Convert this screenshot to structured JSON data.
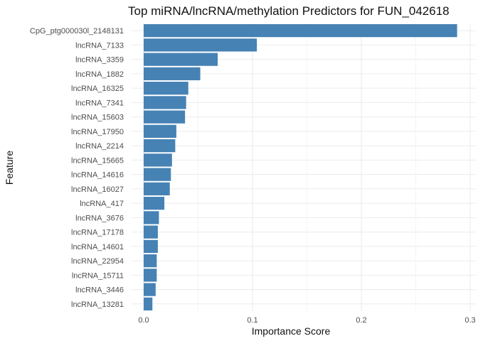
{
  "chart_data": {
    "type": "bar",
    "orientation": "horizontal",
    "title": "Top miRNA/lncRNA/methylation Predictors for FUN_042618",
    "xlabel": "Importance Score",
    "ylabel": "Feature",
    "xlim": [
      0,
      0.3
    ],
    "xticks": [
      "0.0",
      "0.1",
      "0.2",
      "0.3"
    ],
    "grid": true,
    "bar_color": "#4682B4",
    "categories": [
      "CpG_ptg000030l_2148131",
      "lncRNA_7133",
      "lncRNA_3359",
      "lncRNA_1882",
      "lncRNA_16325",
      "lncRNA_7341",
      "lncRNA_15603",
      "lncRNA_17950",
      "lncRNA_2214",
      "lncRNA_15665",
      "lncRNA_14616",
      "lncRNA_16027",
      "lncRNA_417",
      "lncRNA_3676",
      "lncRNA_17178",
      "lncRNA_14601",
      "lncRNA_22954",
      "lncRNA_15711",
      "lncRNA_3446",
      "lncRNA_13281"
    ],
    "values": [
      0.288,
      0.104,
      0.068,
      0.052,
      0.041,
      0.039,
      0.038,
      0.03,
      0.029,
      0.026,
      0.025,
      0.024,
      0.019,
      0.014,
      0.013,
      0.013,
      0.012,
      0.012,
      0.011,
      0.008
    ]
  }
}
